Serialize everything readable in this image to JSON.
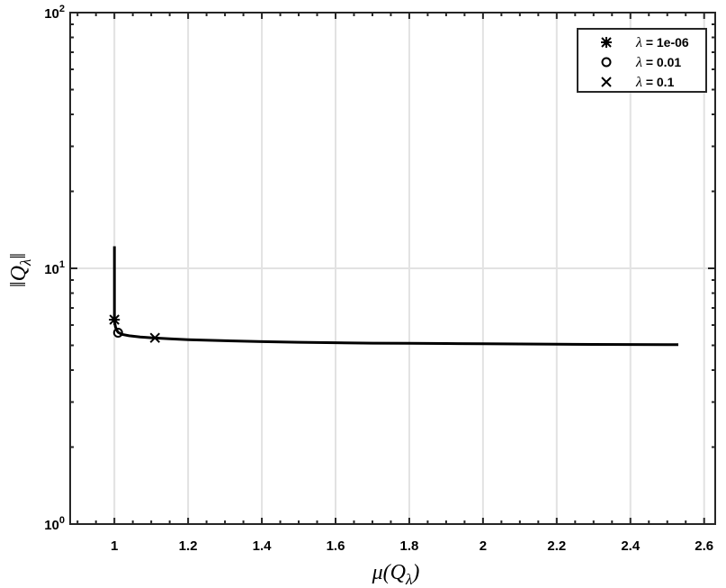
{
  "chart_data": {
    "type": "line",
    "xlim": [
      0.88,
      2.63
    ],
    "ylim": [
      1,
      100
    ],
    "yscale": "log",
    "grid": true,
    "legend_position": "top-right",
    "x_ticks": [
      1,
      1.2,
      1.4,
      1.6,
      1.8,
      2,
      2.2,
      2.4,
      2.6
    ],
    "x_tick_labels": [
      "1",
      "1.2",
      "1.4",
      "1.6",
      "1.8",
      "2",
      "2.2",
      "2.4",
      "2.6"
    ],
    "y_ticks": [
      1,
      10,
      100
    ],
    "y_tick_labels": [
      {
        "base": "10",
        "exp": "0"
      },
      {
        "base": "10",
        "exp": "1"
      },
      {
        "base": "10",
        "exp": "2"
      }
    ],
    "xlabel": "μ(Q",
    "xlabel_sub": "λ",
    "xlabel_end": ")",
    "ylabel": "‖Q",
    "ylabel_sub": "λ",
    "ylabel_end": "‖",
    "curve": {
      "x": [
        1.0,
        1.0,
        1.0,
        1.0,
        1.0,
        1.0,
        1.001,
        1.003,
        1.006,
        1.01,
        1.02,
        1.04,
        1.07,
        1.1,
        1.15,
        1.2,
        1.3,
        1.4,
        1.5,
        1.6,
        1.7,
        1.8,
        1.9,
        2.0,
        2.1,
        2.2,
        2.3,
        2.4,
        2.5,
        2.53
      ],
      "y": [
        12.2,
        10.5,
        9.0,
        8.0,
        7.2,
        6.5,
        6.1,
        5.9,
        5.75,
        5.62,
        5.52,
        5.45,
        5.39,
        5.35,
        5.3,
        5.26,
        5.21,
        5.17,
        5.14,
        5.12,
        5.1,
        5.09,
        5.08,
        5.07,
        5.06,
        5.05,
        5.04,
        5.035,
        5.03,
        5.03
      ]
    },
    "series": [
      {
        "name_prefix": "λ",
        "name_suffix": " = 1e-06",
        "marker": "asterisk",
        "x": 1.0,
        "y": 6.3
      },
      {
        "name_prefix": "λ",
        "name_suffix": " = 0.01",
        "marker": "circle",
        "x": 1.01,
        "y": 5.6
      },
      {
        "name_prefix": "λ",
        "name_suffix": " = 0.1",
        "marker": "x",
        "x": 1.11,
        "y": 5.35
      }
    ]
  }
}
